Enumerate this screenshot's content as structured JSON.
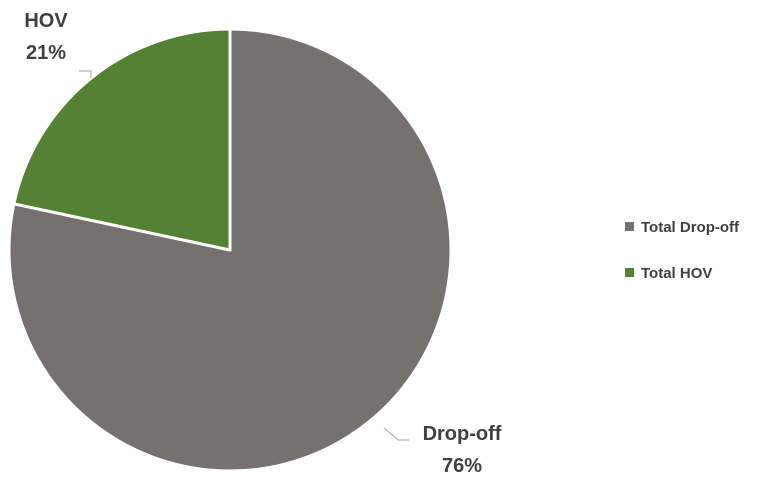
{
  "chart_data": {
    "type": "pie",
    "title": "",
    "categories": [
      "Total Drop-off",
      "Total HOV"
    ],
    "series": [
      {
        "values": [
          76,
          21
        ]
      }
    ],
    "start_angle_deg": 0,
    "direction": "clockwise",
    "colors": [
      "#767171",
      "#548235"
    ],
    "slice_outline_color": "#ffffff",
    "data_labels": [
      {
        "name": "Drop-off",
        "value": "76%"
      },
      {
        "name": "HOV",
        "value": "21%"
      }
    ],
    "legend": {
      "position": "right",
      "entries": [
        "Total Drop-off",
        "Total HOV"
      ]
    }
  }
}
